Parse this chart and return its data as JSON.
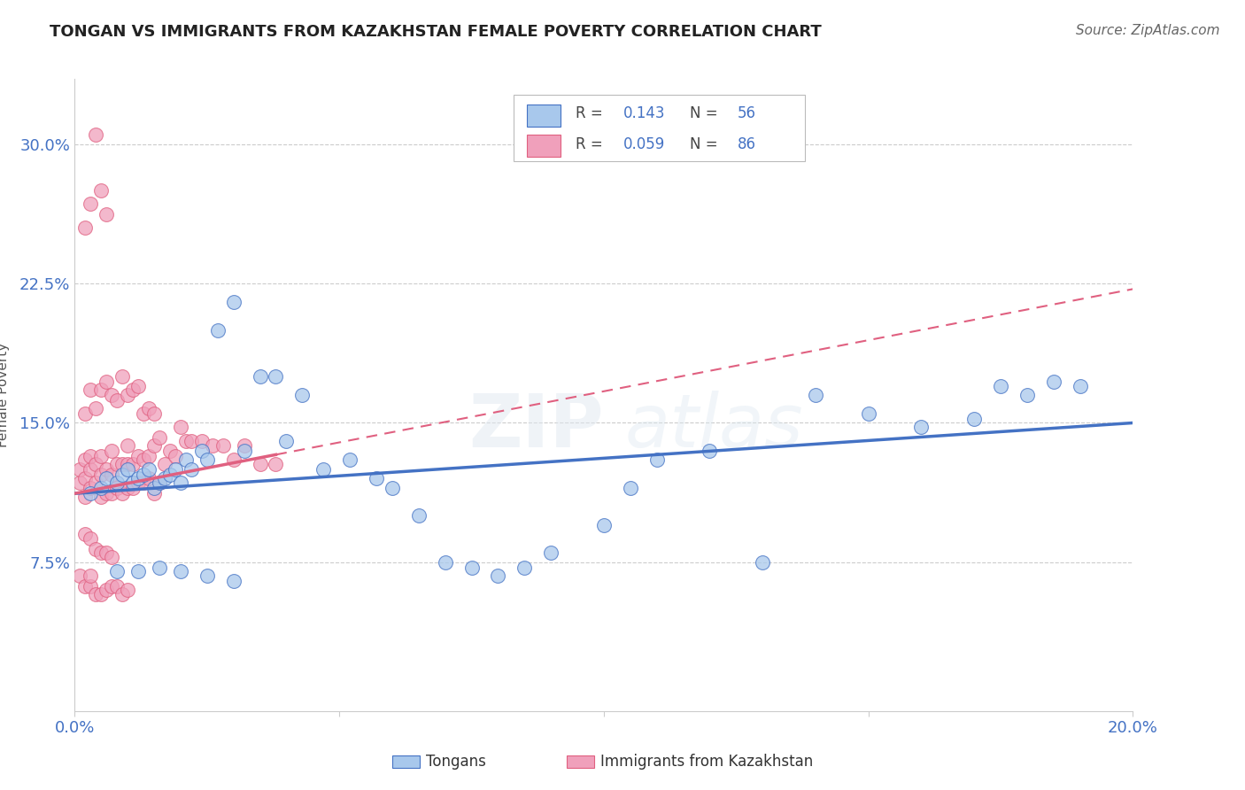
{
  "title": "TONGAN VS IMMIGRANTS FROM KAZAKHSTAN FEMALE POVERTY CORRELATION CHART",
  "source": "Source: ZipAtlas.com",
  "ylabel": "Female Poverty",
  "y_tick_labels": [
    "7.5%",
    "15.0%",
    "22.5%",
    "30.0%"
  ],
  "y_tick_values": [
    0.075,
    0.15,
    0.225,
    0.3
  ],
  "x_range": [
    0.0,
    0.2
  ],
  "y_range": [
    -0.005,
    0.335
  ],
  "color_blue": "#A8C8EC",
  "color_pink": "#F0A0BB",
  "color_blue_line": "#4472C4",
  "color_pink_line": "#E06080",
  "blue_x": [
    0.003,
    0.005,
    0.006,
    0.008,
    0.009,
    0.01,
    0.011,
    0.012,
    0.013,
    0.014,
    0.015,
    0.016,
    0.017,
    0.018,
    0.019,
    0.02,
    0.021,
    0.022,
    0.024,
    0.025,
    0.027,
    0.03,
    0.032,
    0.035,
    0.038,
    0.04,
    0.043,
    0.047,
    0.052,
    0.057,
    0.06,
    0.065,
    0.07,
    0.075,
    0.08,
    0.085,
    0.09,
    0.1,
    0.105,
    0.11,
    0.12,
    0.13,
    0.14,
    0.15,
    0.16,
    0.17,
    0.175,
    0.18,
    0.185,
    0.19,
    0.008,
    0.012,
    0.016,
    0.02,
    0.025,
    0.03
  ],
  "blue_y": [
    0.112,
    0.115,
    0.12,
    0.118,
    0.122,
    0.125,
    0.118,
    0.12,
    0.122,
    0.125,
    0.115,
    0.118,
    0.12,
    0.122,
    0.125,
    0.118,
    0.13,
    0.125,
    0.135,
    0.13,
    0.2,
    0.215,
    0.135,
    0.175,
    0.175,
    0.14,
    0.165,
    0.125,
    0.13,
    0.12,
    0.115,
    0.1,
    0.075,
    0.072,
    0.068,
    0.072,
    0.08,
    0.095,
    0.115,
    0.13,
    0.135,
    0.075,
    0.165,
    0.155,
    0.148,
    0.152,
    0.17,
    0.165,
    0.172,
    0.17,
    0.07,
    0.07,
    0.072,
    0.07,
    0.068,
    0.065
  ],
  "pink_x": [
    0.001,
    0.001,
    0.002,
    0.002,
    0.002,
    0.003,
    0.003,
    0.003,
    0.004,
    0.004,
    0.005,
    0.005,
    0.005,
    0.006,
    0.006,
    0.007,
    0.007,
    0.007,
    0.008,
    0.008,
    0.009,
    0.009,
    0.01,
    0.01,
    0.01,
    0.011,
    0.011,
    0.012,
    0.012,
    0.013,
    0.013,
    0.014,
    0.014,
    0.015,
    0.015,
    0.016,
    0.016,
    0.017,
    0.018,
    0.019,
    0.02,
    0.021,
    0.022,
    0.024,
    0.026,
    0.028,
    0.03,
    0.032,
    0.035,
    0.038,
    0.002,
    0.003,
    0.004,
    0.005,
    0.006,
    0.007,
    0.008,
    0.009,
    0.01,
    0.011,
    0.012,
    0.013,
    0.014,
    0.015,
    0.002,
    0.003,
    0.004,
    0.005,
    0.006,
    0.007,
    0.001,
    0.002,
    0.003,
    0.003,
    0.004,
    0.005,
    0.006,
    0.007,
    0.008,
    0.009,
    0.01,
    0.002,
    0.003,
    0.004,
    0.005,
    0.006
  ],
  "pink_y": [
    0.118,
    0.125,
    0.11,
    0.12,
    0.13,
    0.115,
    0.125,
    0.132,
    0.118,
    0.128,
    0.11,
    0.122,
    0.132,
    0.112,
    0.125,
    0.112,
    0.122,
    0.135,
    0.115,
    0.128,
    0.112,
    0.128,
    0.115,
    0.128,
    0.138,
    0.115,
    0.128,
    0.118,
    0.132,
    0.118,
    0.13,
    0.12,
    0.132,
    0.112,
    0.138,
    0.118,
    0.142,
    0.128,
    0.135,
    0.132,
    0.148,
    0.14,
    0.14,
    0.14,
    0.138,
    0.138,
    0.13,
    0.138,
    0.128,
    0.128,
    0.155,
    0.168,
    0.158,
    0.168,
    0.172,
    0.165,
    0.162,
    0.175,
    0.165,
    0.168,
    0.17,
    0.155,
    0.158,
    0.155,
    0.09,
    0.088,
    0.082,
    0.08,
    0.08,
    0.078,
    0.068,
    0.062,
    0.062,
    0.068,
    0.058,
    0.058,
    0.06,
    0.062,
    0.062,
    0.058,
    0.06,
    0.255,
    0.268,
    0.305,
    0.275,
    0.262
  ]
}
